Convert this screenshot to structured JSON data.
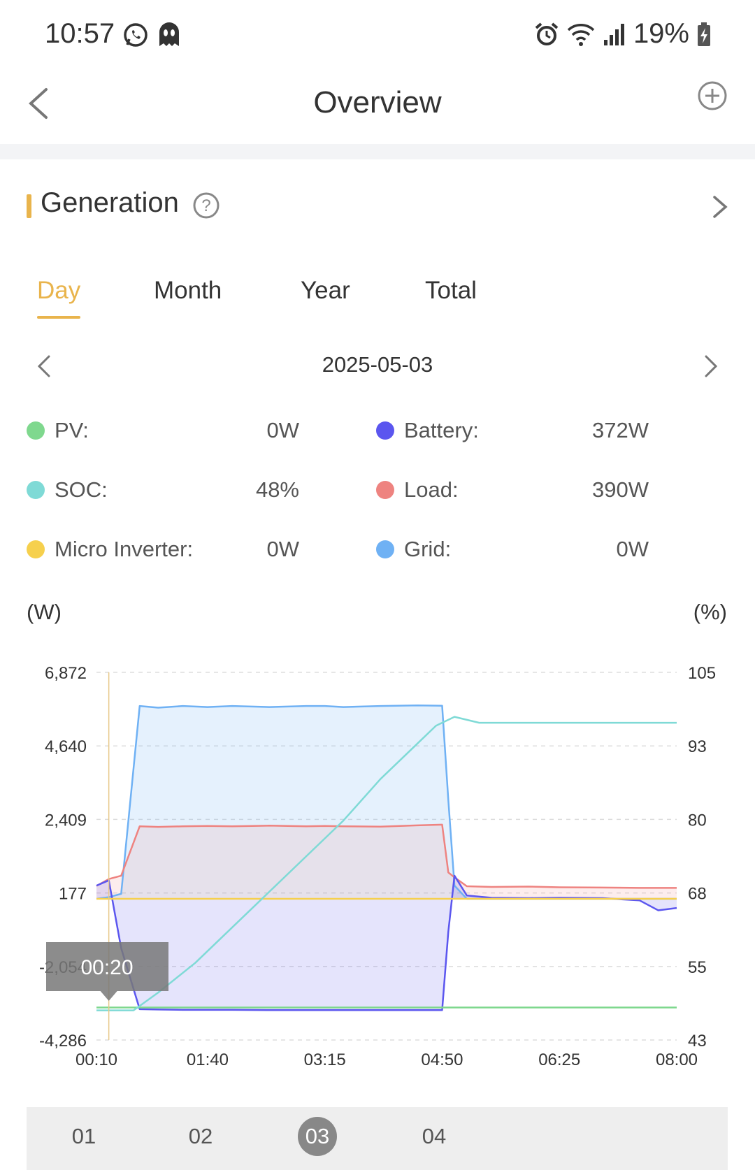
{
  "status_bar": {
    "time": "10:57",
    "battery": "19%",
    "icons": [
      "whatsapp-icon",
      "ghost-app-icon",
      "alarm-icon",
      "wifi-icon",
      "signal-icon",
      "battery-charging-icon"
    ]
  },
  "header": {
    "title": "Overview",
    "back_icon": "chevron-left-icon",
    "add_icon": "plus-circle-icon"
  },
  "generation": {
    "title": "Generation",
    "help_icon": "question-circle-icon",
    "detail_icon": "chevron-right-icon"
  },
  "tabs": [
    {
      "label": "Day",
      "active": true
    },
    {
      "label": "Month",
      "active": false
    },
    {
      "label": "Year",
      "active": false
    },
    {
      "label": "Total",
      "active": false
    }
  ],
  "date_nav": {
    "date": "2025-05-03"
  },
  "legend": [
    {
      "label": "PV:",
      "value": "0W",
      "color": "#7fd88e"
    },
    {
      "label": "Battery:",
      "value": "372W",
      "color": "#5b56ef"
    },
    {
      "label": "SOC:",
      "value": "48%",
      "color": "#7fdad6"
    },
    {
      "label": "Load:",
      "value": "390W",
      "color": "#ee8380"
    },
    {
      "label": "Micro Inverter:",
      "value": "0W",
      "color": "#f6d04d"
    },
    {
      "label": "Grid:",
      "value": "0W",
      "color": "#6fb1f4"
    }
  ],
  "chart_data": {
    "type": "line",
    "left_unit": "(W)",
    "right_unit": "(%)",
    "left_ticks": [
      "6,872",
      "4,640",
      "2,409",
      "177",
      "-2,054",
      "-4,286"
    ],
    "right_ticks": [
      "105",
      "93",
      "80",
      "68",
      "55",
      "43"
    ],
    "x_ticks": [
      "00:10",
      "01:40",
      "03:15",
      "04:50",
      "06:25",
      "08:00"
    ],
    "ylim_left": [
      -4286,
      6872
    ],
    "ylim_right": [
      43,
      105
    ],
    "grid": true,
    "tooltip": {
      "label": "00:20",
      "x": "00:20"
    },
    "x": [
      "00:10",
      "00:20",
      "00:30",
      "00:45",
      "01:00",
      "01:20",
      "01:40",
      "02:00",
      "02:30",
      "03:00",
      "03:15",
      "03:30",
      "04:00",
      "04:30",
      "04:50",
      "04:55",
      "05:00",
      "05:10",
      "05:30",
      "06:00",
      "06:25",
      "07:00",
      "07:30",
      "07:45",
      "08:00"
    ],
    "series": [
      {
        "name": "Grid",
        "color": "#6fb1f4",
        "values": [
          0,
          50,
          150,
          5850,
          5800,
          5850,
          5820,
          5850,
          5820,
          5850,
          5850,
          5820,
          5850,
          5870,
          5860,
          3000,
          400,
          0,
          0,
          0,
          0,
          0,
          0,
          0,
          0
        ]
      },
      {
        "name": "Load",
        "color": "#ee8380",
        "values": [
          390,
          600,
          700,
          2200,
          2180,
          2200,
          2210,
          2200,
          2220,
          2200,
          2210,
          2200,
          2190,
          2230,
          2250,
          800,
          650,
          380,
          360,
          370,
          350,
          340,
          330,
          330,
          330
        ]
      },
      {
        "name": "Battery",
        "color": "#5b56ef",
        "values": [
          400,
          560,
          -1500,
          -3350,
          -3360,
          -3370,
          -3370,
          -3370,
          -3380,
          -3380,
          -3380,
          -3380,
          -3380,
          -3380,
          -3380,
          -1000,
          700,
          100,
          30,
          20,
          30,
          20,
          -50,
          -350,
          -280
        ]
      },
      {
        "name": "Micro Inverter",
        "color": "#f6d04d",
        "values": [
          0,
          0,
          0,
          0,
          0,
          0,
          0,
          0,
          0,
          0,
          0,
          0,
          0,
          0,
          0,
          0,
          0,
          0,
          0,
          0,
          0,
          0,
          0,
          0,
          0
        ]
      },
      {
        "name": "PV",
        "color": "#7fd88e",
        "values": [
          -3300,
          -3300,
          -3300,
          -3300,
          -3300,
          -3300,
          -3300,
          -3300,
          -3300,
          -3300,
          -3300,
          -3300,
          -3300,
          -3300,
          -3300,
          -3300,
          -3300,
          -3300,
          -3300,
          -3300,
          -3300,
          -3300,
          -3300,
          -3300,
          -3300
        ]
      }
    ],
    "soc_series": {
      "name": "SOC",
      "color": "#7fdad6",
      "x": [
        "00:10",
        "00:20",
        "00:40",
        "01:00",
        "01:30",
        "02:00",
        "02:30",
        "03:00",
        "03:30",
        "04:00",
        "04:30",
        "04:45",
        "05:00",
        "05:20",
        "06:00",
        "07:00",
        "08:00"
      ],
      "values": [
        48,
        48,
        48,
        51,
        56,
        62,
        68,
        74,
        80,
        87,
        93,
        96,
        97.5,
        96.5,
        96.5,
        96.5,
        96.5
      ]
    }
  },
  "pager": {
    "items": [
      "01",
      "02",
      "03",
      "04"
    ],
    "active_index": 2
  }
}
